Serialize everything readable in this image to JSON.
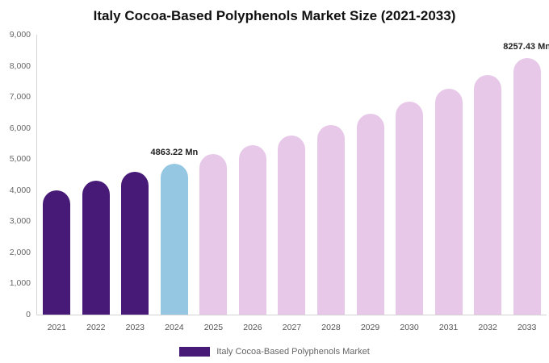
{
  "chart_data": {
    "type": "bar",
    "title": "Italy Cocoa-Based Polyphenols Market Size (2021-2033)",
    "xlabel": "",
    "ylabel": "",
    "categories": [
      "2021",
      "2022",
      "2023",
      "2024",
      "2025",
      "2026",
      "2027",
      "2028",
      "2029",
      "2030",
      "2031",
      "2032",
      "2033"
    ],
    "values": [
      4000,
      4300,
      4600,
      4863.22,
      5150,
      5450,
      5750,
      6100,
      6450,
      6850,
      7250,
      7700,
      8257.43
    ],
    "ylim": [
      0,
      9000
    ],
    "ytick_step": 1000,
    "grid": false,
    "legend_position": "bottom",
    "bar_colors": [
      "#481a77",
      "#481a77",
      "#481a77",
      "#95c7e3",
      "#e7c8e9",
      "#e7c8e9",
      "#e7c8e9",
      "#e7c8e9",
      "#e7c8e9",
      "#e7c8e9",
      "#e7c8e9",
      "#e7c8e9",
      "#e7c8e9"
    ],
    "colors": {
      "historical": "#481a77",
      "current_year": "#95c7e3",
      "forecast": "#e7c8e9"
    },
    "data_labels": [
      {
        "category": "2024",
        "text": "4863.22 Mn"
      },
      {
        "category": "2033",
        "text": "8257.43 Mn"
      }
    ],
    "legend": [
      {
        "label": "Italy Cocoa-Based Polyphenols Market",
        "color": "#481a77"
      }
    ]
  }
}
